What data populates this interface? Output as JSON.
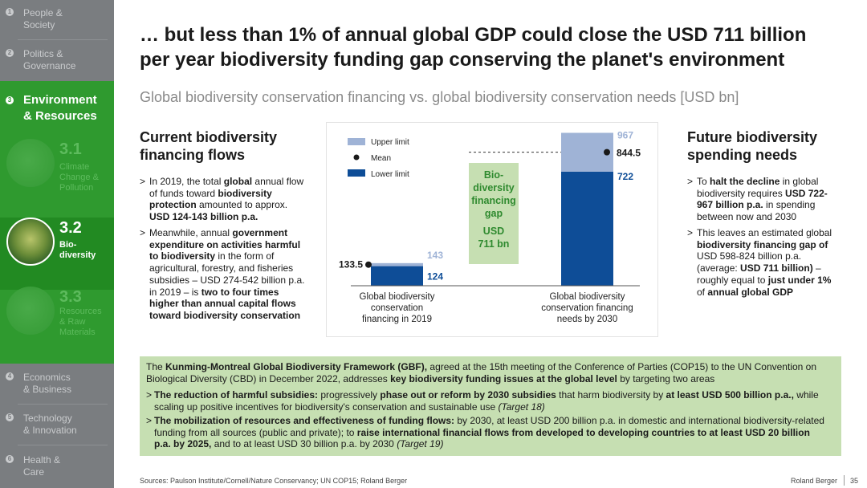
{
  "sidebar": {
    "items": [
      {
        "num": "1",
        "label": "People &\nSociety"
      },
      {
        "num": "2",
        "label": "Politics &\nGovernance"
      },
      {
        "num": "3",
        "label": "Environment\n& Resources"
      },
      {
        "num": "4",
        "label": "Economics\n& Business"
      },
      {
        "num": "5",
        "label": "Technology\n& Innovation"
      },
      {
        "num": "6",
        "label": "Health &\nCare"
      }
    ],
    "subitems": [
      {
        "num": "3.1",
        "label": "Climate\nChange &\nPollution"
      },
      {
        "num": "3.2",
        "label": "Bio-\ndiversity"
      },
      {
        "num": "3.3",
        "label": "Resources\n& Raw\nMaterials"
      }
    ]
  },
  "header": {
    "title": "… but less than 1% of annual global GDP could close the USD 711 billion\nper year biodiversity funding gap conserving the planet's environment",
    "subtitle": "Global biodiversity conservation financing vs. global biodiversity conservation needs [USD bn]"
  },
  "left": {
    "heading": "Current biodiversity\nfinancing flows",
    "bullet1": {
      "t1": "In 2019, the total ",
      "b1": "global",
      "t2": " annual flow of funds toward ",
      "b2": "biodiversity protection",
      "t3": " amounted to approx. ",
      "b3": "USD 124-143 billion p.a."
    },
    "bullet2": {
      "t1": "Meanwhile, annual ",
      "b1": "government expenditure on activities harmful to biodiversity",
      "t2": " in the form of agricultural, forestry, and fisheries subsidies – USD 274-542 billion p.a. in 2019 – is ",
      "b2": "two to four times higher than annual capital flows toward biodiversity conservation"
    }
  },
  "right": {
    "heading": "Future biodiversity\nspending needs",
    "bullet1": {
      "t1": "To ",
      "b1": "halt the decline",
      "t2": " in global biodiversity requires ",
      "b2": "USD 722-967 billion p.a.",
      "t3": " in spending between now and 2030"
    },
    "bullet2": {
      "t1": "This leaves an estimated global ",
      "b1": "biodiversity financing gap of",
      "t2": " USD 598-824 billion p.a. (average: ",
      "b2": "USD 711 billion)",
      "t3": " – roughly equal to ",
      "b3": "just under 1%",
      "t4": " of ",
      "b4": "annual global GDP"
    }
  },
  "chart_data": {
    "type": "bar",
    "legend": [
      {
        "name": "Upper limit",
        "color": "#9fb3d6"
      },
      {
        "name": "Mean",
        "color": "#1a1a1a"
      },
      {
        "name": "Lower limit",
        "color": "#0e4d97"
      }
    ],
    "legend_placement": "top-left",
    "categories": [
      "Global biodiversity\nconservation\nfinancing in 2019",
      "Global biodiversity\nconservation financing\nneeds by 2030"
    ],
    "series": [
      {
        "name": "Lower limit",
        "values": [
          124,
          722
        ]
      },
      {
        "name": "Upper limit",
        "values": [
          143,
          967
        ]
      },
      {
        "name": "Mean",
        "values": [
          133.5,
          844.5
        ]
      }
    ],
    "value_labels": {
      "lower": [
        "124",
        "722"
      ],
      "upper": [
        "143",
        "967"
      ],
      "mean": [
        "133.5",
        "844.5"
      ]
    },
    "gap_annotation": {
      "line1": "Bio-\ndiversity\nfinancing\ngap",
      "line2": "USD\n711 bn",
      "value": 711
    },
    "ylim": [
      0,
      1000
    ],
    "colors": {
      "upper": "#9fb3d6",
      "lower": "#0e4d97",
      "gap": "#c6dfb2",
      "gap_text": "#2f8a2f"
    }
  },
  "gbf": {
    "intro": {
      "t1": "The ",
      "b1": "Kunming-Montreal Global Biodiversity Framework (GBF),",
      "t2": " agreed at the 15th meeting of the Conference of Parties (COP15) to the UN Convention on Biological Diversity (CBD) in December 2022, addresses ",
      "b2": "key biodiversity funding issues at the global level",
      "t3": " by targeting two areas"
    },
    "bullet1": {
      "b1": "The reduction of harmful subsidies:",
      "t1": " progressively ",
      "b2": "phase out or reform by 2030 subsidies",
      "t2": " that harm biodiversity by ",
      "b3": "at least USD 500 billion p.a.,",
      "t3": " while scaling up positive incentives for biodiversity's conservation and sustainable use ",
      "i1": "(Target 18)"
    },
    "bullet2": {
      "b1": "The mobilization of resources and effectiveness of funding flows:",
      "t1": " by 2030, at least USD 200 billion p.a. in domestic and international biodiversity-related funding from all sources (public and private); to ",
      "b2": "raise international financial flows from developed to developing countries to at least USD 20 billion p.a. by 2025,",
      "t2": " and to at least USD 30 billion p.a. by 2030 ",
      "i1": "(Target 19)"
    }
  },
  "footer": {
    "source": "Sources: Paulson Institute/Cornell/Nature Conservancy; UN COP15; Roland Berger",
    "brand": "Roland Berger",
    "page": "35"
  },
  "colors": {
    "sidebar": "#7a7d80",
    "accent_green": "#2f9a2f",
    "box_green": "#c6dfb2"
  }
}
